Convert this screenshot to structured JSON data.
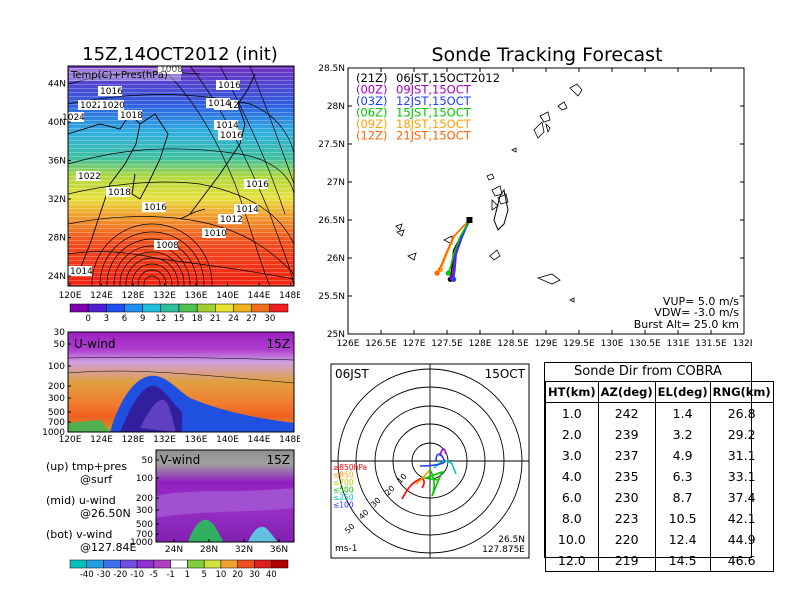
{
  "left": {
    "init_title": "15Z,14OCT2012 (init)",
    "map": {
      "label": "Temp(C)+Pres(hPa)",
      "lat_ticks": [
        "24N",
        "28N",
        "32N",
        "36N",
        "40N",
        "44N"
      ],
      "lon_ticks": [
        "120E",
        "124E",
        "128E",
        "132E",
        "136E",
        "140E",
        "144E",
        "148E"
      ],
      "isobars": [
        "1008",
        "1016",
        "1012",
        "1014",
        "1016",
        "1024",
        "1022",
        "1020",
        "1018",
        "1014",
        "1016",
        "1016",
        "1014",
        "1012",
        "1010",
        "1008",
        "1014",
        "1022",
        "1018",
        "1016"
      ]
    },
    "temp_scale": [
      "0",
      "3",
      "6",
      "9",
      "12",
      "15",
      "18",
      "21",
      "24",
      "27",
      "30"
    ],
    "uwind": {
      "label": "U-wind",
      "time": "15Z",
      "y_ticks": [
        "30",
        "50",
        "100",
        "200",
        "300",
        "500",
        "700",
        "1000"
      ],
      "x_ticks": [
        "120E",
        "124E",
        "128E",
        "132E",
        "136E",
        "140E",
        "144E",
        "148E"
      ]
    },
    "vwind": {
      "label": "V-wind",
      "time": "15Z",
      "y_ticks": [
        "50",
        "100",
        "200",
        "300",
        "500",
        "700",
        "1000"
      ],
      "x_ticks": [
        "24N",
        "28N",
        "32N",
        "36N"
      ]
    },
    "wind_scale": [
      "-40",
      "-30",
      "-20",
      "-10",
      "-5",
      "-1",
      "1",
      "5",
      "10",
      "20",
      "30",
      "40"
    ],
    "notes": [
      "(up) tmp+pres",
      "@surf",
      "(mid) u-wind",
      "@26.50N",
      "(bot) v-wind",
      "@127.84E"
    ]
  },
  "forecast": {
    "title": "Sonde Tracking Forecast",
    "launches": [
      {
        "utc": "(21Z)",
        "jst": "06JST,15OCT2012",
        "color": "#000000"
      },
      {
        "utc": "(00Z)",
        "jst": "09JST,15OCT",
        "color": "#a000c8"
      },
      {
        "utc": "(03Z)",
        "jst": "12JST,15OCT",
        "color": "#1e3cff"
      },
      {
        "utc": "(06Z)",
        "jst": "15JST,15OCT",
        "color": "#00c800"
      },
      {
        "utc": "(09Z)",
        "jst": "18JST,15OCT",
        "color": "#ffa000"
      },
      {
        "utc": "(12Z)",
        "jst": "21JST,15OCT",
        "color": "#ff6400"
      }
    ],
    "lat_ticks": [
      "25N",
      "25.5N",
      "26N",
      "26.5N",
      "27N",
      "27.5N",
      "28N",
      "28.5N"
    ],
    "lon_ticks": [
      "126E",
      "126.5E",
      "127E",
      "127.5E",
      "128E",
      "128.5E",
      "129E",
      "129.5E",
      "130E",
      "130.5E",
      "131E",
      "131.5E",
      "132E"
    ],
    "vup": "VUP= 5.0 m/s",
    "vdw": "VDW= -3.0 m/s",
    "burst": "Burst Alt= 25.0 km"
  },
  "polar": {
    "time": "06JST",
    "date": "15OCT",
    "ring_labels": [
      "50",
      "40",
      "30",
      "20",
      "10"
    ],
    "pressure_levels": [
      {
        "label": "≥850hPa",
        "color": "#ff0000"
      },
      {
        "label": "≤850",
        "color": "#ffa000"
      },
      {
        "label": "≤700",
        "color": "#c8c800"
      },
      {
        "label": "≤500",
        "color": "#00c800"
      },
      {
        "label": "≤250",
        "color": "#00c8c8"
      },
      {
        "label": "≤100",
        "color": "#1e3cff"
      }
    ],
    "unit": "ms-1",
    "pos_lat": "26.5N",
    "pos_lon": "127.875E"
  },
  "table": {
    "title": "Sonde Dir from COBRA",
    "headers": [
      "HT(km)",
      "AZ(deg)",
      "EL(deg)",
      "RNG(km)"
    ],
    "rows": [
      [
        "1.0",
        "242",
        "1.4",
        "26.8"
      ],
      [
        "2.0",
        "239",
        "3.2",
        "29.2"
      ],
      [
        "3.0",
        "237",
        "4.9",
        "31.1"
      ],
      [
        "4.0",
        "235",
        "6.3",
        "33.1"
      ],
      [
        "6.0",
        "230",
        "8.7",
        "37.4"
      ],
      [
        "8.0",
        "223",
        "10.5",
        "42.1"
      ],
      [
        "10.0",
        "220",
        "12.4",
        "44.9"
      ],
      [
        "12.0",
        "219",
        "14.5",
        "46.6"
      ]
    ]
  },
  "chart_data": [
    {
      "type": "line",
      "title": "Sonde Tracking Forecast",
      "xlim": [
        126,
        132
      ],
      "ylim": [
        25,
        28.5
      ],
      "series": [
        {
          "name": "(21Z) 06JST,15OCT2012",
          "x": [
            127.84,
            127.82,
            127.72,
            127.6,
            127.58,
            127.55
          ],
          "y": [
            26.5,
            26.45,
            26.3,
            26.1,
            25.9,
            25.72
          ]
        },
        {
          "name": "(00Z) 09JST,15OCT",
          "x": [
            127.84,
            127.7,
            127.62,
            127.6,
            127.58
          ],
          "y": [
            26.5,
            26.25,
            26.05,
            25.85,
            25.74
          ]
        },
        {
          "name": "(03Z) 12JST,15OCT",
          "x": [
            127.84,
            127.72,
            127.64,
            127.62,
            127.6
          ],
          "y": [
            26.5,
            26.25,
            26.05,
            25.85,
            25.72
          ]
        },
        {
          "name": "(06Z) 15JST,15OCT",
          "x": [
            127.84,
            127.7,
            127.6,
            127.56,
            127.52
          ],
          "y": [
            26.5,
            26.28,
            26.05,
            25.9,
            25.8
          ]
        },
        {
          "name": "(09Z) 18JST,15OCT",
          "x": [
            127.84,
            127.62,
            127.52,
            127.45,
            127.4
          ],
          "y": [
            26.5,
            26.3,
            26.1,
            25.95,
            25.85
          ]
        },
        {
          "name": "(12Z) 21JST,15OCT",
          "x": [
            127.84,
            127.6,
            127.48,
            127.42,
            127.35
          ],
          "y": [
            26.5,
            26.28,
            26.05,
            25.92,
            25.8
          ]
        }
      ]
    }
  ]
}
